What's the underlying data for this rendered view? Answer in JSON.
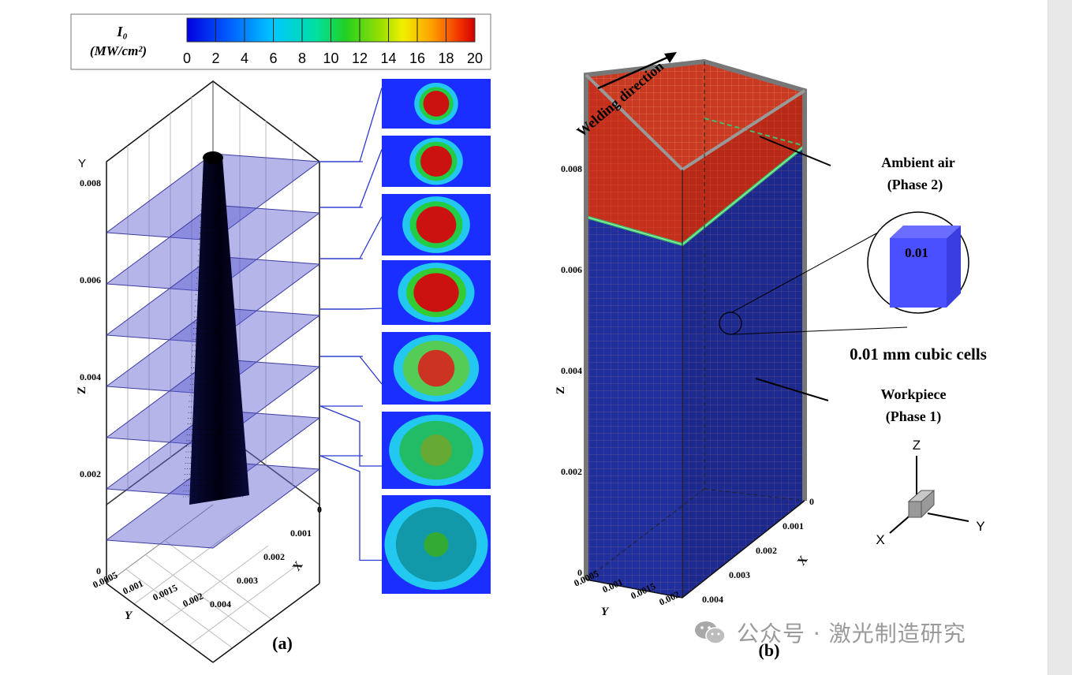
{
  "colorbar": {
    "title": "I₀",
    "unit": "(MW/cm²)",
    "ticks": [
      "0",
      "2",
      "4",
      "6",
      "8",
      "10",
      "12",
      "14",
      "16",
      "18",
      "20"
    ],
    "range": [
      0,
      20
    ]
  },
  "panel_a": {
    "caption": "(a)",
    "axis_y_label": "Y",
    "axis_z_label": "Z",
    "axis_x_label": "X",
    "z_ticks": [
      "0.008",
      "0.006",
      "0.004",
      "0.002",
      "0"
    ],
    "x_ticks": [
      "0",
      "0.001",
      "0.002",
      "0.003",
      "0.004"
    ],
    "y_ticks": [
      "0.0005",
      "0.001",
      "0.0015",
      "0.002"
    ],
    "plane_count": 7,
    "spot_profiles": [
      {
        "peak_color": "#cc1111",
        "ring_color": "#22cc44"
      },
      {
        "peak_color": "#cc1111",
        "ring_color": "#22cc44"
      },
      {
        "peak_color": "#cc1111",
        "ring_color": "#22cc44"
      },
      {
        "peak_color": "#cc1111",
        "ring_color": "#33cc33"
      },
      {
        "peak_color": "#cc3322",
        "ring_color": "#55cc55"
      },
      {
        "peak_color": "#66aa33",
        "ring_color": "#22bb66"
      },
      {
        "peak_color": "#33aa33",
        "ring_color": "#1199aa"
      }
    ]
  },
  "panel_b": {
    "caption": "(b)",
    "welding_direction": "Welding direction",
    "ambient_air": "Ambient air",
    "phase2": "(Phase 2)",
    "workpiece": "Workpiece",
    "phase1": "(Phase 1)",
    "cell_label": "0.01",
    "cells_text": "0.01 mm cubic cells",
    "axis_z_label": "Z",
    "axis_x_label": "X",
    "axis_y_label": "Y",
    "z_ticks": [
      "0.008",
      "0.006",
      "0.004",
      "0.002",
      "0"
    ],
    "x_ticks": [
      "0",
      "0.001",
      "0.002",
      "0.003",
      "0.004"
    ],
    "y_ticks": [
      "0.0005",
      "0.001",
      "0.0015",
      "0.002"
    ],
    "triad": {
      "z": "Z",
      "x": "X",
      "y": "Y"
    },
    "colors": {
      "air": "#c4301b",
      "workpiece": "#1f2f9e",
      "interface": "#3fbf6f",
      "cell": "#4a50ff"
    }
  },
  "watermark": "公众号 · 激光制造研究"
}
